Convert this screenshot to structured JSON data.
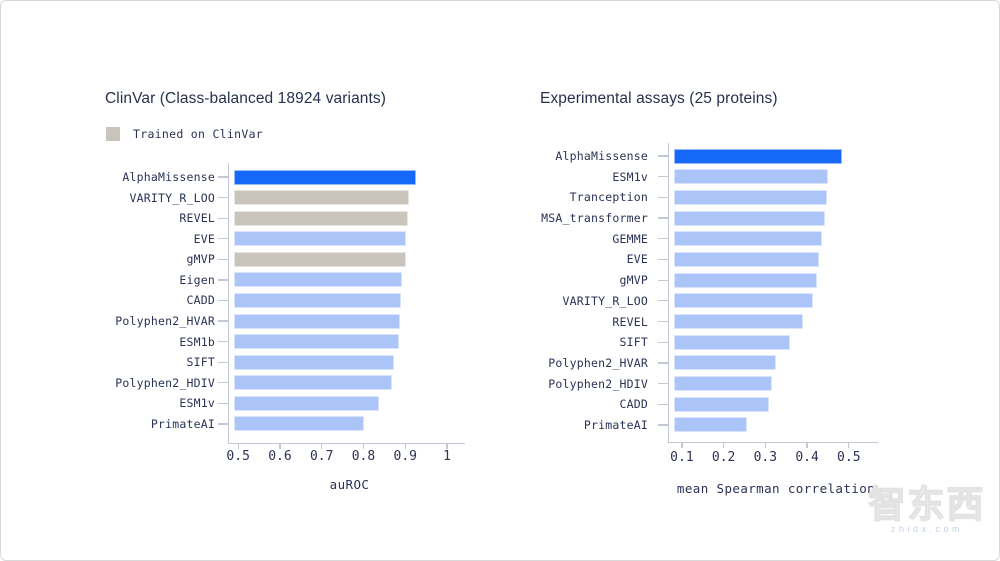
{
  "watermark": {
    "cn": "智东西",
    "en": "zhidx.com"
  },
  "colors": {
    "highlight": "#1568f8",
    "default": "#abc5f9",
    "trained": "#c9c5bd",
    "text": "#2b3256",
    "axis": "#c4c8d6"
  },
  "chart_data": [
    {
      "type": "bar",
      "orientation": "horizontal",
      "title": "ClinVar (Class-balanced 18924 variants)",
      "xlabel": "auROC",
      "xlim": [
        0.49,
        1.043
      ],
      "grid": false,
      "legend": {
        "label": "Trained on ClinVar",
        "swatch_color": "#c9c5bd",
        "position": "top-left"
      },
      "xticks": [
        0.5,
        0.6,
        0.7,
        0.8,
        0.9,
        1
      ],
      "xtick_labels": [
        "0.5",
        "0.6",
        "0.7",
        "0.8",
        "0.9",
        "1"
      ],
      "categories": [
        "AlphaMissense",
        "VARITY_R_LOO",
        "REVEL",
        "EVE",
        "gMVP",
        "Eigen",
        "CADD",
        "Polyphen2_HVAR",
        "ESM1b",
        "SIFT",
        "Polyphen2_HDIV",
        "ESM1v",
        "PrimateAI"
      ],
      "values": [
        0.926,
        0.909,
        0.907,
        0.901,
        0.902,
        0.892,
        0.889,
        0.888,
        0.885,
        0.873,
        0.868,
        0.838,
        0.801
      ],
      "bar_styles": [
        "highlight",
        "trained",
        "trained",
        "default",
        "trained",
        "default",
        "default",
        "default",
        "default",
        "default",
        "default",
        "default",
        "default"
      ]
    },
    {
      "type": "bar",
      "orientation": "horizontal",
      "title": "Experimental assays (25 proteins)",
      "xlabel": "mean Spearman correlation",
      "xlim": [
        0.081,
        0.57
      ],
      "grid": false,
      "xticks": [
        0.1,
        0.2,
        0.3,
        0.4,
        0.5
      ],
      "xtick_labels": [
        "0.1",
        "0.2",
        "0.3",
        "0.4",
        "0.5"
      ],
      "categories": [
        "AlphaMissense",
        "ESM1v",
        "Tranception",
        "MSA_transformer",
        "GEMME",
        "EVE",
        "gMVP",
        "VARITY_R_LOO",
        "REVEL",
        "SIFT",
        "Polyphen2_HVAR",
        "Polyphen2_HDIV",
        "CADD",
        "PrimateAI"
      ],
      "values": [
        0.484,
        0.45,
        0.448,
        0.443,
        0.436,
        0.429,
        0.424,
        0.414,
        0.39,
        0.359,
        0.325,
        0.316,
        0.309,
        0.256
      ],
      "bar_styles": [
        "highlight",
        "default",
        "default",
        "default",
        "default",
        "default",
        "default",
        "default",
        "default",
        "default",
        "default",
        "default",
        "default",
        "default"
      ]
    }
  ]
}
